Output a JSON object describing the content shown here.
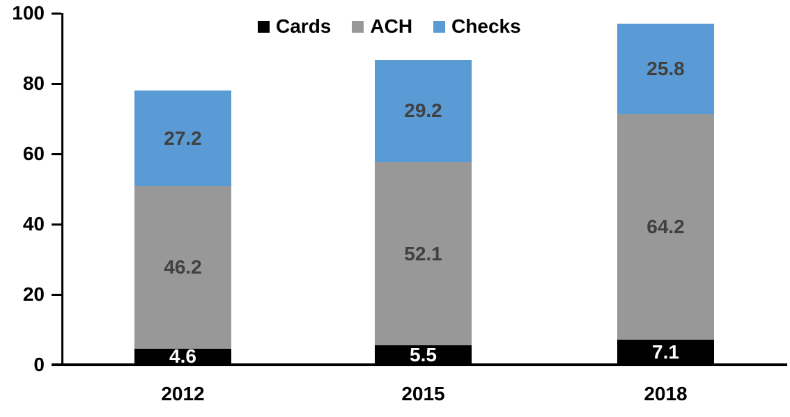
{
  "chart_data": {
    "type": "bar",
    "stacked": true,
    "title": "",
    "categories": [
      "2012",
      "2015",
      "2018"
    ],
    "series": [
      {
        "name": "Cards",
        "color": "#000000",
        "label_color": "#FFFFFF",
        "values": [
          4.6,
          5.5,
          7.1
        ]
      },
      {
        "name": "ACH",
        "color": "#989898",
        "label_color": "#404040",
        "values": [
          46.2,
          52.1,
          64.2
        ]
      },
      {
        "name": "Checks",
        "color": "#5B9BD5",
        "label_color": "#404040",
        "values": [
          27.2,
          29.2,
          25.8
        ]
      }
    ],
    "xlabel": "",
    "ylabel": "",
    "ylim": [
      0,
      100
    ],
    "yticks": [
      0,
      20,
      40,
      60,
      80,
      100
    ],
    "grid": false,
    "legend_position": "top",
    "axis_color": "#000000",
    "value_decimals": 1
  }
}
